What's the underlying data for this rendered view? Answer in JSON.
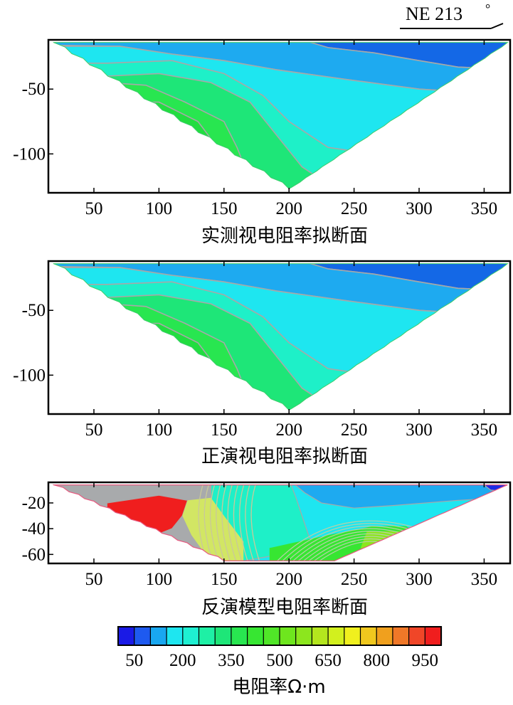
{
  "direction": {
    "label": "NE 213",
    "degree_mark": "°"
  },
  "panels": [
    {
      "id": "measured",
      "caption": "实测视电阻率拟断面",
      "x_ticks": [
        50,
        100,
        150,
        200,
        250,
        300,
        350
      ],
      "y_ticks": [
        -50,
        -100
      ],
      "ylim": [
        -130,
        -12
      ],
      "xlim": [
        15,
        370
      ],
      "profile_top": -14,
      "vertex": [
        200,
        -127
      ]
    },
    {
      "id": "forward",
      "caption": "正演视电阻率拟断面",
      "x_ticks": [
        50,
        100,
        150,
        200,
        250,
        300,
        350
      ],
      "y_ticks": [
        -50,
        -100
      ],
      "ylim": [
        -130,
        -12
      ],
      "xlim": [
        15,
        370
      ],
      "profile_top": -14,
      "vertex": [
        200,
        -127
      ]
    },
    {
      "id": "inversion",
      "caption": "反演模型电阻率断面",
      "x_ticks": [
        50,
        100,
        150,
        200,
        250,
        300,
        350
      ],
      "y_ticks": [
        -20,
        -40,
        -60
      ],
      "ylim": [
        -67,
        -4
      ],
      "xlim": [
        15,
        370
      ],
      "profile_top": -6,
      "bottom_range": [
        150,
        235
      ]
    }
  ],
  "colorbar": {
    "colors": [
      "#1a1ae6",
      "#1e5af0",
      "#19a7f0",
      "#1ee6f0",
      "#1ef0d2",
      "#1ef0a5",
      "#1ee678",
      "#28e650",
      "#37e632",
      "#50e628",
      "#6ee61e",
      "#8ce61e",
      "#b4e61e",
      "#d2f01e",
      "#f0f01e",
      "#f0c81e",
      "#f0a01e",
      "#f07828",
      "#f04628",
      "#f01e1e"
    ],
    "tick_labels": [
      "50",
      "200",
      "350",
      "500",
      "650",
      "800",
      "950"
    ],
    "label": "电阻率Ω·m"
  },
  "chart_data": [
    {
      "type": "heatmap",
      "title": "实测视电阻率拟断面",
      "x_tick_labels": [
        50,
        100,
        150,
        200,
        250,
        300,
        350
      ],
      "y_tick_labels": [
        -50,
        -100
      ],
      "ylim": [
        -130,
        -12
      ],
      "xlim": [
        15,
        370
      ],
      "colorbar_ticks": [
        50,
        200,
        350,
        500,
        650,
        800,
        950
      ],
      "colorbar_label": "电阻率Ω·m"
    },
    {
      "type": "heatmap",
      "title": "正演视电阻率拟断面",
      "x_tick_labels": [
        50,
        100,
        150,
        200,
        250,
        300,
        350
      ],
      "y_tick_labels": [
        -50,
        -100
      ],
      "ylim": [
        -130,
        -12
      ],
      "xlim": [
        15,
        370
      ],
      "colorbar_ticks": [
        50,
        200,
        350,
        500,
        650,
        800,
        950
      ],
      "colorbar_label": "电阻率Ω·m"
    },
    {
      "type": "heatmap",
      "title": "反演模型电阻率断面",
      "x_tick_labels": [
        50,
        100,
        150,
        200,
        250,
        300,
        350
      ],
      "y_tick_labels": [
        -20,
        -40,
        -60
      ],
      "ylim": [
        -67,
        -4
      ],
      "xlim": [
        15,
        370
      ],
      "colorbar_ticks": [
        50,
        200,
        350,
        500,
        650,
        800,
        950
      ],
      "colorbar_label": "电阻率Ω·m"
    }
  ]
}
